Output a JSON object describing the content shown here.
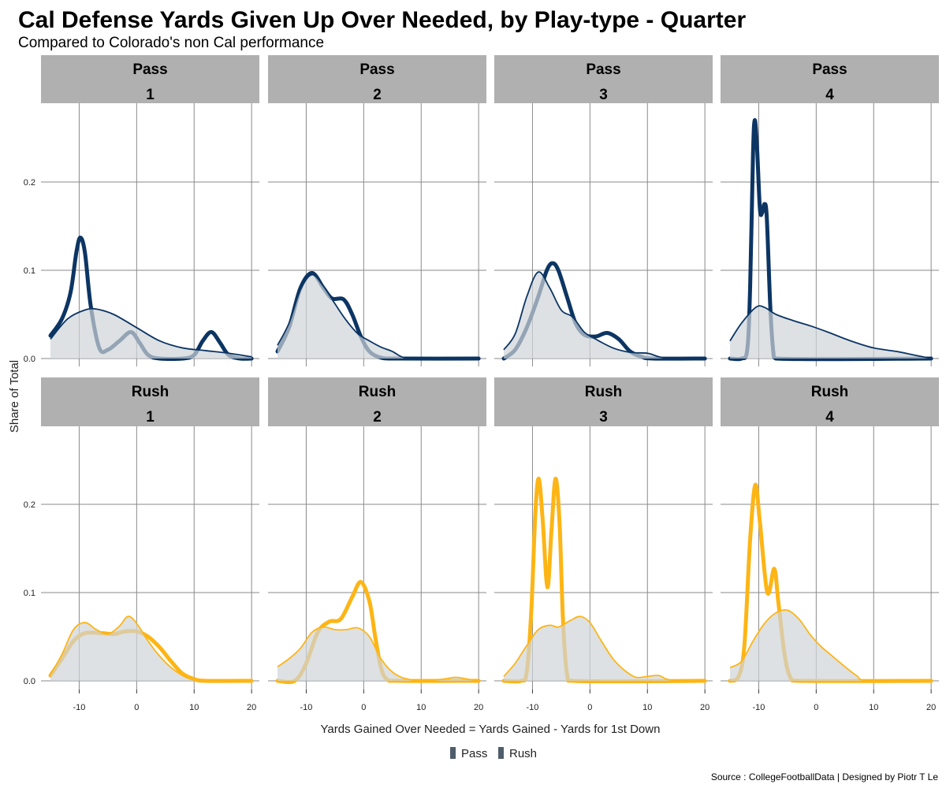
{
  "chart_data": {
    "type": "area",
    "title": "Cal Defense Yards Given Up Over Needed, by Play-type - Quarter",
    "subtitle": "Compared to Colorado's non Cal performance",
    "xlabel": "Yards Gained Over Needed = Yards Gained - Yards for 1st Down",
    "ylabel": "Share of Total",
    "caption": "Source : CollegeFootballData | Designed by Piotr T Le",
    "xlim": [
      -15,
      20
    ],
    "ylim": [
      0,
      0.28
    ],
    "x_ticks": [
      "-10",
      "0",
      "10",
      "20"
    ],
    "x_tick_values": [
      -10,
      0,
      10,
      20
    ],
    "y_ticks": [
      "0.0",
      "0.1",
      "0.2"
    ],
    "y_tick_values": [
      0,
      0.1,
      0.2
    ],
    "grid": true,
    "legend": {
      "placement": "bottom",
      "entries": [
        "Pass",
        "Rush"
      ]
    },
    "colors": {
      "Pass": "#0c3563",
      "Rush": "#fdb515",
      "baseline_fill": "#cfd4d9",
      "legend_swatch": "#4f5d6b",
      "strip": "#b0b0b0",
      "grid": "#8a8a8a"
    },
    "series_note_fill": "Colorado non-Cal (filled)",
    "series_note_line": "Cal (thick line)",
    "panels": [
      {
        "play_type": "Pass",
        "quarter": "1",
        "baseline": [
          [
            -15,
            0.022
          ],
          [
            -12,
            0.045
          ],
          [
            -9,
            0.055
          ],
          [
            -7,
            0.056
          ],
          [
            -4,
            0.05
          ],
          [
            0,
            0.035
          ],
          [
            4,
            0.02
          ],
          [
            8,
            0.012
          ],
          [
            12,
            0.009
          ],
          [
            16,
            0.006
          ],
          [
            20,
            0.002
          ]
        ],
        "cal": [
          [
            -15,
            0.026
          ],
          [
            -13,
            0.045
          ],
          [
            -11.5,
            0.075
          ],
          [
            -10.5,
            0.12
          ],
          [
            -9.8,
            0.137
          ],
          [
            -9,
            0.12
          ],
          [
            -8,
            0.06
          ],
          [
            -6.5,
            0.012
          ],
          [
            -5,
            0.01
          ],
          [
            -3,
            0.02
          ],
          [
            -1,
            0.03
          ],
          [
            0.5,
            0.018
          ],
          [
            2,
            0.004
          ],
          [
            4,
            0
          ],
          [
            8,
            0
          ],
          [
            10,
            0.004
          ],
          [
            11.5,
            0.02
          ],
          [
            13,
            0.03
          ],
          [
            14.5,
            0.018
          ],
          [
            16,
            0.004
          ],
          [
            18,
            0
          ],
          [
            20,
            0
          ]
        ]
      },
      {
        "play_type": "Pass",
        "quarter": "2",
        "baseline": [
          [
            -15,
            0.015
          ],
          [
            -13,
            0.04
          ],
          [
            -11,
            0.078
          ],
          [
            -9,
            0.095
          ],
          [
            -7,
            0.082
          ],
          [
            -5,
            0.062
          ],
          [
            -3,
            0.043
          ],
          [
            -1,
            0.028
          ],
          [
            1,
            0.02
          ],
          [
            3,
            0.013
          ],
          [
            5,
            0.008
          ],
          [
            7,
            0.001
          ],
          [
            10,
            0
          ],
          [
            20,
            0
          ]
        ],
        "cal": [
          [
            -15,
            0.008
          ],
          [
            -13,
            0.035
          ],
          [
            -11,
            0.08
          ],
          [
            -9,
            0.097
          ],
          [
            -7,
            0.08
          ],
          [
            -5.5,
            0.068
          ],
          [
            -3.5,
            0.067
          ],
          [
            -2,
            0.05
          ],
          [
            -0.5,
            0.025
          ],
          [
            1,
            0.008
          ],
          [
            3,
            0.001
          ],
          [
            6,
            0
          ],
          [
            20,
            0
          ]
        ]
      },
      {
        "play_type": "Pass",
        "quarter": "3",
        "baseline": [
          [
            -15,
            0.01
          ],
          [
            -13,
            0.028
          ],
          [
            -11,
            0.07
          ],
          [
            -9,
            0.098
          ],
          [
            -7,
            0.08
          ],
          [
            -5,
            0.055
          ],
          [
            -3,
            0.047
          ],
          [
            -1,
            0.03
          ],
          [
            1,
            0.022
          ],
          [
            4,
            0.012
          ],
          [
            7,
            0.007
          ],
          [
            10,
            0.006
          ],
          [
            12,
            0.002
          ],
          [
            14,
            0
          ],
          [
            20,
            0
          ]
        ],
        "cal": [
          [
            -15,
            0
          ],
          [
            -13,
            0.01
          ],
          [
            -11,
            0.035
          ],
          [
            -9,
            0.07
          ],
          [
            -7.5,
            0.1
          ],
          [
            -6.5,
            0.108
          ],
          [
            -5.5,
            0.1
          ],
          [
            -4,
            0.07
          ],
          [
            -2.5,
            0.04
          ],
          [
            -1,
            0.027
          ],
          [
            1,
            0.025
          ],
          [
            3,
            0.029
          ],
          [
            5,
            0.022
          ],
          [
            7,
            0.008
          ],
          [
            9,
            0.002
          ],
          [
            11,
            0
          ],
          [
            20,
            0
          ]
        ]
      },
      {
        "play_type": "Pass",
        "quarter": "4",
        "baseline": [
          [
            -15,
            0.02
          ],
          [
            -13,
            0.04
          ],
          [
            -10.5,
            0.058
          ],
          [
            -9,
            0.058
          ],
          [
            -7,
            0.05
          ],
          [
            -4,
            0.043
          ],
          [
            -1,
            0.037
          ],
          [
            2,
            0.03
          ],
          [
            6,
            0.02
          ],
          [
            10,
            0.012
          ],
          [
            14,
            0.008
          ],
          [
            17,
            0.004
          ],
          [
            20,
            0
          ]
        ],
        "cal": [
          [
            -15,
            0
          ],
          [
            -13,
            0
          ],
          [
            -12,
            0.01
          ],
          [
            -11.5,
            0.08
          ],
          [
            -11,
            0.23
          ],
          [
            -10.7,
            0.27
          ],
          [
            -10.3,
            0.24
          ],
          [
            -9.8,
            0.17
          ],
          [
            -9.4,
            0.165
          ],
          [
            -9,
            0.175
          ],
          [
            -8.6,
            0.16
          ],
          [
            -8,
            0.06
          ],
          [
            -7.5,
            0.01
          ],
          [
            -7,
            0
          ],
          [
            20,
            0
          ]
        ]
      },
      {
        "play_type": "Rush",
        "quarter": "1",
        "baseline": [
          [
            -15,
            0.007
          ],
          [
            -13,
            0.03
          ],
          [
            -11,
            0.058
          ],
          [
            -9,
            0.066
          ],
          [
            -7,
            0.058
          ],
          [
            -5,
            0.053
          ],
          [
            -3,
            0.062
          ],
          [
            -1.5,
            0.073
          ],
          [
            0,
            0.065
          ],
          [
            2,
            0.045
          ],
          [
            4,
            0.028
          ],
          [
            6,
            0.015
          ],
          [
            8,
            0.006
          ],
          [
            10,
            0.001
          ],
          [
            12,
            0
          ],
          [
            20,
            0
          ]
        ],
        "cal": [
          [
            -15,
            0.006
          ],
          [
            -13,
            0.025
          ],
          [
            -11,
            0.045
          ],
          [
            -9,
            0.054
          ],
          [
            -6,
            0.054
          ],
          [
            -4,
            0.053
          ],
          [
            -2,
            0.056
          ],
          [
            0,
            0.056
          ],
          [
            2,
            0.05
          ],
          [
            4,
            0.038
          ],
          [
            6,
            0.022
          ],
          [
            8,
            0.008
          ],
          [
            10,
            0.002
          ],
          [
            12,
            0
          ],
          [
            20,
            0
          ]
        ]
      },
      {
        "play_type": "Rush",
        "quarter": "2",
        "baseline": [
          [
            -15,
            0.016
          ],
          [
            -13,
            0.025
          ],
          [
            -11,
            0.037
          ],
          [
            -9,
            0.055
          ],
          [
            -7,
            0.061
          ],
          [
            -5,
            0.058
          ],
          [
            -3,
            0.058
          ],
          [
            -1,
            0.06
          ],
          [
            1,
            0.05
          ],
          [
            3,
            0.025
          ],
          [
            5,
            0.01
          ],
          [
            7,
            0.003
          ],
          [
            10,
            0
          ],
          [
            14,
            0.002
          ],
          [
            16,
            0.004
          ],
          [
            18,
            0.002
          ],
          [
            20,
            0
          ]
        ],
        "cal": [
          [
            -15,
            0
          ],
          [
            -12,
            0
          ],
          [
            -10,
            0.02
          ],
          [
            -8,
            0.055
          ],
          [
            -6,
            0.067
          ],
          [
            -4,
            0.07
          ],
          [
            -2,
            0.095
          ],
          [
            -0.5,
            0.112
          ],
          [
            1,
            0.09
          ],
          [
            2,
            0.05
          ],
          [
            3,
            0.015
          ],
          [
            4,
            0.002
          ],
          [
            6,
            0
          ],
          [
            20,
            0
          ]
        ]
      },
      {
        "play_type": "Rush",
        "quarter": "3",
        "baseline": [
          [
            -15,
            0.005
          ],
          [
            -13,
            0.02
          ],
          [
            -11,
            0.04
          ],
          [
            -9,
            0.058
          ],
          [
            -7,
            0.063
          ],
          [
            -5.5,
            0.061
          ],
          [
            -3.5,
            0.068
          ],
          [
            -1.7,
            0.073
          ],
          [
            0,
            0.066
          ],
          [
            2,
            0.045
          ],
          [
            4,
            0.025
          ],
          [
            6,
            0.012
          ],
          [
            8,
            0.004
          ],
          [
            10,
            0.005
          ],
          [
            12,
            0.006
          ],
          [
            14,
            0.001
          ],
          [
            20,
            0
          ]
        ],
        "cal": [
          [
            -15,
            0
          ],
          [
            -12,
            0
          ],
          [
            -11,
            0.01
          ],
          [
            -10.2,
            0.08
          ],
          [
            -9.5,
            0.19
          ],
          [
            -8.9,
            0.229
          ],
          [
            -8.2,
            0.18
          ],
          [
            -7.4,
            0.106
          ],
          [
            -6.7,
            0.17
          ],
          [
            -6,
            0.229
          ],
          [
            -5.3,
            0.18
          ],
          [
            -4.7,
            0.07
          ],
          [
            -4,
            0.008
          ],
          [
            -3,
            0
          ],
          [
            20,
            0
          ]
        ]
      },
      {
        "play_type": "Rush",
        "quarter": "4",
        "baseline": [
          [
            -15,
            0.015
          ],
          [
            -13,
            0.022
          ],
          [
            -11,
            0.045
          ],
          [
            -9,
            0.065
          ],
          [
            -7,
            0.077
          ],
          [
            -5,
            0.08
          ],
          [
            -3,
            0.07
          ],
          [
            -1,
            0.052
          ],
          [
            1,
            0.038
          ],
          [
            3,
            0.027
          ],
          [
            5,
            0.016
          ],
          [
            7,
            0.006
          ],
          [
            9,
            0
          ],
          [
            20,
            0
          ]
        ],
        "cal": [
          [
            -15,
            0
          ],
          [
            -13.5,
            0.005
          ],
          [
            -12.5,
            0.04
          ],
          [
            -11.5,
            0.16
          ],
          [
            -10.6,
            0.222
          ],
          [
            -9.8,
            0.18
          ],
          [
            -8.5,
            0.1
          ],
          [
            -7.3,
            0.127
          ],
          [
            -6.6,
            0.09
          ],
          [
            -5.5,
            0.03
          ],
          [
            -4.5,
            0.004
          ],
          [
            -3,
            0
          ],
          [
            20,
            0
          ]
        ]
      }
    ]
  }
}
